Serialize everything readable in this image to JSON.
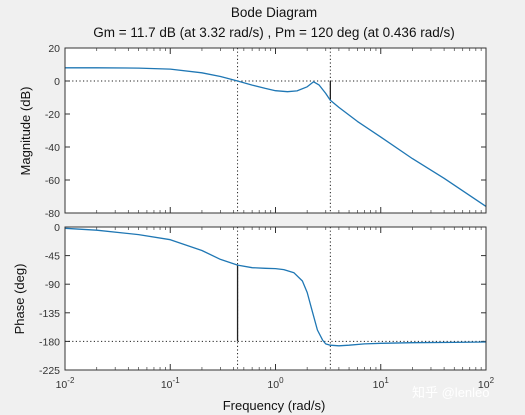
{
  "chart_data": [
    {
      "type": "line",
      "panel": "magnitude",
      "title": "Bode Diagram",
      "subtitle": "Gm = 11.7 dB (at 3.32 rad/s) ,  Pm = 120 deg (at 0.436 rad/s)",
      "xlabel": "Frequency  (rad/s)",
      "ylabel": "Magnitude (dB)",
      "xscale": "log",
      "xlim": [
        0.01,
        100
      ],
      "ylim": [
        -80,
        20
      ],
      "yticks": [
        20,
        0,
        -20,
        -40,
        -60,
        -80
      ],
      "grid": false,
      "color": "#1f77b4",
      "series": [
        {
          "x": [
            0.01,
            0.02,
            0.05,
            0.1,
            0.2,
            0.3,
            0.436,
            0.6,
            0.8,
            1.0,
            1.3,
            1.6,
            2.0,
            2.3,
            2.6,
            3.0,
            3.32,
            4.0,
            6.0,
            10,
            20,
            40,
            100
          ],
          "y": [
            8,
            8,
            7.8,
            7.2,
            5,
            2.7,
            0,
            -2.5,
            -4.5,
            -5.9,
            -6.5,
            -6,
            -3.5,
            -0.5,
            -2.5,
            -7.5,
            -11.7,
            -16,
            -24.5,
            -34,
            -47,
            -59,
            -76
          ]
        }
      ],
      "markers": [
        {
          "type": "vline",
          "x": 0.436,
          "style": "dotted"
        },
        {
          "type": "vline",
          "x": 3.32,
          "style": "dotted"
        },
        {
          "type": "hline",
          "y": 0,
          "style": "dotted"
        },
        {
          "type": "gain_margin",
          "x": 3.32,
          "from": -11.7,
          "to": 0
        }
      ]
    },
    {
      "type": "line",
      "panel": "phase",
      "xlabel": "Frequency  (rad/s)",
      "ylabel": "Phase (deg)",
      "xscale": "log",
      "xlim": [
        0.01,
        100
      ],
      "ylim": [
        -225,
        0
      ],
      "yticks": [
        0,
        -45,
        -90,
        -135,
        -180,
        -225
      ],
      "xticks": [
        0.01,
        0.1,
        1,
        10,
        100
      ],
      "grid": false,
      "color": "#1f77b4",
      "series": [
        {
          "x": [
            0.01,
            0.02,
            0.05,
            0.1,
            0.2,
            0.3,
            0.436,
            0.6,
            0.8,
            1.0,
            1.2,
            1.5,
            1.8,
            2.0,
            2.2,
            2.5,
            2.8,
            3.0,
            3.32,
            4.0,
            5.0,
            7.0,
            10,
            20,
            50,
            100
          ],
          "y": [
            -2,
            -5,
            -12,
            -20,
            -37,
            -51,
            -60,
            -64,
            -65,
            -65.5,
            -67,
            -72,
            -85,
            -103,
            -128,
            -162,
            -178,
            -184,
            -186,
            -187,
            -186,
            -184,
            -183,
            -182,
            -181.5,
            -181
          ]
        }
      ],
      "markers": [
        {
          "type": "vline",
          "x": 0.436,
          "style": "dotted"
        },
        {
          "type": "vline",
          "x": 3.32,
          "style": "dotted"
        },
        {
          "type": "hline",
          "y": -180,
          "style": "dotted"
        },
        {
          "type": "phase_margin",
          "x": 0.436,
          "from": -180,
          "to": -60
        }
      ]
    }
  ],
  "watermark": "知乎 @lenleo"
}
